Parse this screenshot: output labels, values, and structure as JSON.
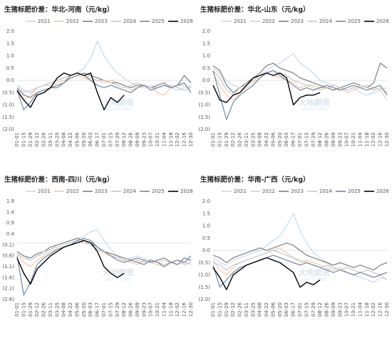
{
  "chart_data": [
    {
      "type": "line",
      "title": "生猪标肥价差：华北-河南（元/kg）",
      "watermark": "大地期货",
      "watermark_en": "DADI FUTURES",
      "categories": [
        "01-01",
        "01-15",
        "01-29",
        "02-12",
        "02-26",
        "03-11",
        "03-25",
        "04-08",
        "04-22",
        "05-06",
        "05-20",
        "06-03",
        "06-17",
        "07-01",
        "07-15",
        "07-29",
        "08-12",
        "08-26",
        "09-09",
        "09-23",
        "10-07",
        "10-21",
        "11-04",
        "11-18",
        "12-02",
        "12-16",
        "12-30"
      ],
      "ylim": [
        -2,
        2
      ],
      "grid": false,
      "yticks": [
        {
          "value": 2,
          "label": "2.0"
        },
        1.5,
        {
          "value": 1,
          "label": "1.0"
        },
        0.5,
        {
          "value": 0,
          "label": "0.0"
        },
        {
          "value": -0.5,
          "label": "(0.5)"
        },
        {
          "value": -1,
          "label": "(1.0)"
        },
        {
          "value": -1.5,
          "label": "(1.5)"
        },
        {
          "value": -2,
          "label": "(2.0)"
        }
      ],
      "series": [
        {
          "name": "2021",
          "color": "#c5d9ee",
          "values": [
            -0.3,
            -0.5,
            -0.4,
            -0.3,
            -0.2,
            -0.1,
            0.0,
            0.1,
            0.2,
            0.3,
            0.5,
            0.9,
            1.6,
            1.0,
            0.6,
            0.3,
            0.1,
            -0.1,
            -0.2,
            -0.3,
            -0.2,
            -0.3,
            -0.2,
            -0.3,
            -0.4,
            -0.3,
            -0.2
          ]
        },
        {
          "name": "2022",
          "color": "#f6c9a8",
          "values": [
            -0.5,
            -0.8,
            -0.6,
            -0.3,
            -0.2,
            -0.2,
            -0.1,
            0.0,
            0.1,
            0.2,
            0.1,
            0.0,
            0.0,
            -0.1,
            0.0,
            -0.1,
            -0.2,
            -0.4,
            -0.3,
            -0.2,
            -0.3,
            -0.5,
            -0.6,
            -0.3,
            -0.2,
            -0.2,
            -0.3
          ]
        },
        {
          "name": "2023",
          "color": "#7f7f7f",
          "values": [
            -0.3,
            -0.6,
            -0.7,
            -0.5,
            -0.4,
            -0.3,
            -0.2,
            -0.1,
            0.1,
            0.2,
            0.3,
            0.2,
            0.1,
            0.0,
            -0.1,
            -0.1,
            -0.2,
            -0.3,
            -0.2,
            -0.2,
            -0.3,
            -0.2,
            -0.1,
            -0.3,
            -0.2,
            0.2,
            -0.1
          ]
        },
        {
          "name": "2024",
          "color": "#c8c8c8",
          "values": [
            -0.2,
            -0.4,
            -0.5,
            -0.3,
            -0.2,
            -0.1,
            0.0,
            0.1,
            0.2,
            0.3,
            0.2,
            0.1,
            0.0,
            0.0,
            -0.1,
            -0.2,
            -0.3,
            -0.2,
            -0.1,
            -0.2,
            -0.3,
            -0.3,
            -0.2,
            -0.2,
            -0.3,
            -0.4,
            -0.3
          ]
        },
        {
          "name": "2025",
          "color": "#6f86a8",
          "values": [
            -0.4,
            -1.2,
            -0.9,
            -0.5,
            -0.4,
            -0.3,
            -0.3,
            -0.1,
            0.2,
            0.3,
            0.2,
            0.0,
            -0.2,
            -0.3,
            -0.2,
            -0.3,
            -0.4,
            -0.5,
            -0.3,
            -0.2,
            -0.4,
            -0.3,
            -0.2,
            -0.3,
            -0.2,
            -0.1,
            -0.5
          ]
        },
        {
          "name": "2026",
          "color": "#000000",
          "values": [
            -0.4,
            -0.8,
            -1.1,
            -0.6,
            -0.5,
            -0.3,
            0.1,
            0.3,
            0.2,
            0.3,
            0.2,
            0.3,
            -0.5,
            -1.2,
            -0.7,
            -0.9,
            -0.6,
            null,
            null,
            null,
            null,
            null,
            null,
            null,
            null,
            null,
            null
          ]
        }
      ]
    },
    {
      "type": "line",
      "title": "生猪标肥价差：华北-山东（元/kg）",
      "watermark": "大地期货",
      "watermark_en": "DADI FUTURES",
      "categories": [
        "01-01",
        "01-15",
        "01-29",
        "02-12",
        "02-26",
        "03-11",
        "03-25",
        "04-08",
        "04-22",
        "05-06",
        "05-20",
        "06-03",
        "06-17",
        "07-01",
        "07-15",
        "07-29",
        "08-12",
        "08-26",
        "09-09",
        "09-23",
        "10-07",
        "10-21",
        "11-04",
        "11-18",
        "12-02",
        "12-16",
        "12-30"
      ],
      "ylim": [
        -2,
        2
      ],
      "grid": false,
      "yticks": [
        {
          "value": 2,
          "label": "2.0"
        },
        1.5,
        {
          "value": 1,
          "label": "1.0"
        },
        0.5,
        {
          "value": 0,
          "label": "0.0"
        },
        {
          "value": -0.5,
          "label": "(0.5)"
        },
        {
          "value": -1,
          "label": "(1.0)"
        },
        {
          "value": -1.5,
          "label": "(1.5)"
        },
        {
          "value": -2,
          "label": "(2.0)"
        }
      ],
      "series": [
        {
          "name": "2021",
          "color": "#c5d9ee",
          "values": [
            0.5,
            0.3,
            0.0,
            -0.2,
            -0.3,
            -0.2,
            0.0,
            0.2,
            0.4,
            0.6,
            0.7,
            0.9,
            1.1,
            0.7,
            0.5,
            0.3,
            0.0,
            -0.1,
            -0.2,
            -0.3,
            -0.4,
            -0.3,
            -0.5,
            -0.6,
            -0.5,
            -0.4,
            -0.8
          ]
        },
        {
          "name": "2022",
          "color": "#f6c9a8",
          "values": [
            0.3,
            -0.2,
            -0.6,
            -0.8,
            -0.5,
            -0.3,
            -0.1,
            0.1,
            0.3,
            0.2,
            0.1,
            0.0,
            -0.1,
            -0.3,
            -0.2,
            -0.3,
            -0.4,
            -0.3,
            -0.2,
            -0.3,
            -0.5,
            -0.4,
            -0.3,
            -0.2,
            -0.3,
            -0.4,
            -0.3
          ]
        },
        {
          "name": "2023",
          "color": "#7f7f7f",
          "values": [
            0.6,
            0.4,
            -0.2,
            -0.5,
            -0.3,
            -0.1,
            0.1,
            0.3,
            0.6,
            0.7,
            0.5,
            0.4,
            0.3,
            0.1,
            0.0,
            -0.1,
            -0.2,
            -0.3,
            -0.4,
            -0.3,
            -0.2,
            -0.1,
            -0.2,
            -0.3,
            -0.1,
            0.7,
            0.5
          ]
        },
        {
          "name": "2024",
          "color": "#c8c8c8",
          "values": [
            0.4,
            0.1,
            -0.4,
            -0.6,
            -0.3,
            -0.2,
            0.0,
            0.2,
            0.3,
            0.4,
            0.3,
            0.2,
            0.0,
            -0.1,
            -0.2,
            -0.2,
            -0.3,
            -0.3,
            -0.2,
            -0.3,
            -0.4,
            -0.3,
            -0.2,
            -0.3,
            -0.4,
            -0.3,
            -0.5
          ]
        },
        {
          "name": "2025",
          "color": "#6f86a8",
          "values": [
            0.4,
            -0.6,
            -1.6,
            -0.9,
            -0.6,
            -0.4,
            -0.2,
            0.1,
            0.3,
            0.4,
            0.2,
            0.0,
            -0.2,
            -0.4,
            -0.3,
            -0.4,
            -0.3,
            -0.2,
            -0.3,
            -0.4,
            -0.3,
            -0.2,
            -0.3,
            -0.4,
            -0.3,
            -0.2,
            -0.6
          ]
        },
        {
          "name": "2026",
          "color": "#000000",
          "values": [
            -0.2,
            -0.8,
            -0.9,
            -0.6,
            -0.5,
            -0.2,
            0.1,
            0.2,
            0.3,
            0.2,
            0.3,
            0.1,
            -1.0,
            -0.7,
            -0.6,
            -0.6,
            -0.5,
            null,
            null,
            null,
            null,
            null,
            null,
            null,
            null,
            null,
            null
          ]
        }
      ]
    },
    {
      "type": "line",
      "title": "生猪标肥价差：西南-四川（元/kg）",
      "watermark": "大地期货",
      "watermark_en": "DADI FUTURES",
      "categories": [
        "01-01",
        "01-15",
        "01-29",
        "02-12",
        "02-26",
        "03-11",
        "03-25",
        "04-08",
        "04-22",
        "05-06",
        "05-20",
        "06-03",
        "06-17",
        "07-01",
        "07-15",
        "07-29",
        "08-12",
        "08-26",
        "09-09",
        "09-23",
        "10-07",
        "10-21",
        "11-04",
        "11-18",
        "12-02",
        "12-16",
        "12-30"
      ],
      "ylim": [
        -2.6,
        1.9
      ],
      "grid": false,
      "yticks": [
        1.9,
        1.4,
        0.9,
        0.4,
        {
          "value": -0.1,
          "label": "(0.1)"
        },
        {
          "value": -0.6,
          "label": "(0.6)"
        },
        {
          "value": -1.1,
          "label": "(1.1)"
        },
        {
          "value": -1.6,
          "label": "(1.6)"
        },
        {
          "value": -2.1,
          "label": "(2.1)"
        },
        {
          "value": -2.6,
          "label": "(2.6)"
        }
      ],
      "series": [
        {
          "name": "2021",
          "color": "#c5d9ee",
          "values": [
            -0.4,
            -0.6,
            -0.8,
            -0.6,
            -0.5,
            -0.3,
            -0.1,
            0.0,
            0.1,
            0.2,
            0.3,
            0.5,
            0.6,
            0.1,
            -0.3,
            -0.6,
            -0.8,
            -0.7,
            -0.6,
            -0.7,
            -0.8,
            -0.9,
            -0.8,
            -0.9,
            -1.0,
            -0.9,
            -0.8
          ]
        },
        {
          "name": "2022",
          "color": "#f6c9a8",
          "values": [
            -0.5,
            -0.9,
            -1.1,
            -0.8,
            -0.6,
            -0.4,
            -0.3,
            -0.2,
            -0.1,
            0.0,
            0.1,
            -0.1,
            -0.3,
            -0.5,
            -0.6,
            -0.7,
            -0.8,
            -0.9,
            -1.0,
            -0.8,
            -0.9,
            -1.0,
            -1.1,
            -0.9,
            -0.8,
            -0.9,
            -1.0
          ]
        },
        {
          "name": "2023",
          "color": "#7f7f7f",
          "values": [
            -0.4,
            -0.6,
            -0.7,
            -0.5,
            -0.4,
            -0.2,
            -0.1,
            0.0,
            0.1,
            0.2,
            0.1,
            0.0,
            -0.2,
            -0.4,
            -0.5,
            -0.6,
            -0.7,
            -0.8,
            -0.7,
            -0.8,
            -0.9,
            -0.8,
            -0.7,
            -0.9,
            -1.0,
            -0.7,
            -0.8
          ]
        },
        {
          "name": "2024",
          "color": "#c8c8c8",
          "values": [
            -0.5,
            -0.7,
            -0.8,
            -0.6,
            -0.4,
            -0.3,
            -0.2,
            -0.1,
            0.0,
            0.1,
            0.0,
            -0.1,
            -0.3,
            -0.4,
            -0.6,
            -0.7,
            -0.8,
            -0.7,
            -0.8,
            -0.9,
            -0.8,
            -0.9,
            -1.0,
            -0.9,
            -0.8,
            -1.0,
            -0.9
          ]
        },
        {
          "name": "2025",
          "color": "#6f86a8",
          "values": [
            -0.6,
            -2.4,
            -1.8,
            -1.0,
            -0.7,
            -0.5,
            -0.3,
            -0.2,
            -0.1,
            0.1,
            0.2,
            0.1,
            -0.2,
            -0.4,
            -0.6,
            -0.8,
            -0.9,
            -0.8,
            -0.9,
            -1.0,
            -0.8,
            -0.9,
            -1.1,
            -0.9,
            -0.8,
            -0.9,
            -0.6
          ]
        },
        {
          "name": "2026",
          "color": "#000000",
          "values": [
            -0.7,
            -1.4,
            -1.9,
            -1.2,
            -0.9,
            -0.6,
            -0.4,
            -0.2,
            -0.1,
            0.0,
            0.1,
            0.0,
            -0.4,
            -1.1,
            -1.4,
            -1.6,
            -1.4,
            null,
            null,
            null,
            null,
            null,
            null,
            null,
            null,
            null,
            null
          ]
        }
      ]
    },
    {
      "type": "line",
      "title": "生猪标肥价差：华南-广西（元/kg）",
      "watermark": "大地期货",
      "watermark_en": "DADI FUTURES",
      "categories": [
        "01-01",
        "01-15",
        "01-29",
        "02-12",
        "02-26",
        "03-11",
        "03-25",
        "04-08",
        "04-22",
        "05-06",
        "05-20",
        "06-03",
        "06-17",
        "07-01",
        "07-15",
        "07-29",
        "08-12",
        "08-26",
        "09-09",
        "09-23",
        "10-07",
        "10-21",
        "11-04",
        "11-18",
        "12-02",
        "12-16",
        "12-30"
      ],
      "ylim": [
        -2,
        2
      ],
      "grid": false,
      "yticks": [
        {
          "value": 2,
          "label": "2.0"
        },
        1.5,
        {
          "value": 1,
          "label": "1.0"
        },
        0.5,
        {
          "value": 0,
          "label": "0.0"
        },
        {
          "value": -0.5,
          "label": "(0.5)"
        },
        {
          "value": -1,
          "label": "(1.0)"
        },
        {
          "value": -1.5,
          "label": "(1.5)"
        },
        {
          "value": -2,
          "label": "(2.0)"
        }
      ],
      "series": [
        {
          "name": "2021",
          "color": "#c5d9ee",
          "values": [
            -0.3,
            -0.5,
            -0.6,
            -0.4,
            -0.3,
            -0.2,
            -0.1,
            0.0,
            0.2,
            0.4,
            0.6,
            1.0,
            1.5,
            0.8,
            0.3,
            -0.1,
            -0.3,
            -0.5,
            -0.7,
            -0.8,
            -0.9,
            -1.0,
            -1.1,
            -1.2,
            -1.3,
            -1.1,
            -1.2
          ]
        },
        {
          "name": "2022",
          "color": "#f6c9a8",
          "values": [
            -0.4,
            -0.8,
            -1.0,
            -0.7,
            -0.5,
            -0.4,
            -0.3,
            -0.2,
            -0.1,
            0.0,
            0.1,
            -0.1,
            -0.3,
            -0.5,
            -0.4,
            -0.5,
            -0.6,
            -0.7,
            -0.8,
            -0.7,
            -0.9,
            -1.0,
            -0.9,
            -1.0,
            -1.1,
            -1.0,
            -1.2
          ]
        },
        {
          "name": "2023",
          "color": "#7f7f7f",
          "values": [
            -0.2,
            -0.3,
            -0.5,
            -0.3,
            -0.2,
            -0.1,
            0.0,
            0.1,
            0.0,
            0.1,
            0.2,
            0.3,
            0.2,
            0.0,
            -0.2,
            -0.3,
            -0.4,
            -0.5,
            -0.6,
            -0.5,
            -0.6,
            -0.7,
            -0.6,
            -0.7,
            -0.8,
            -0.6,
            -0.5
          ]
        },
        {
          "name": "2024",
          "color": "#c8c8c8",
          "values": [
            -0.5,
            -0.6,
            -0.8,
            -0.6,
            -0.5,
            -0.4,
            -0.3,
            -0.2,
            -0.1,
            0.0,
            -0.1,
            -0.2,
            -0.3,
            -0.4,
            -0.5,
            -0.6,
            -0.7,
            -0.6,
            -0.7,
            -0.8,
            -0.7,
            -0.8,
            -0.9,
            -0.8,
            -0.9,
            -1.0,
            -0.9
          ]
        },
        {
          "name": "2025",
          "color": "#6f86a8",
          "values": [
            -0.6,
            -1.5,
            -1.2,
            -0.9,
            -0.7,
            -0.6,
            -0.5,
            -0.4,
            -0.3,
            -0.2,
            -0.3,
            -0.4,
            -0.5,
            -0.6,
            -0.5,
            -0.6,
            -0.7,
            -0.8,
            -0.9,
            -0.8,
            -0.9,
            -1.0,
            -0.9,
            -1.0,
            -1.1,
            -1.0,
            -0.9
          ]
        },
        {
          "name": "2026",
          "color": "#000000",
          "values": [
            -0.7,
            -1.1,
            -1.6,
            -1.0,
            -0.8,
            -0.6,
            -0.5,
            -0.4,
            -0.3,
            -0.4,
            -0.5,
            -0.7,
            -0.9,
            -1.5,
            -1.3,
            -1.4,
            -1.2,
            null,
            null,
            null,
            null,
            null,
            null,
            null,
            null,
            null,
            null
          ]
        }
      ]
    }
  ]
}
